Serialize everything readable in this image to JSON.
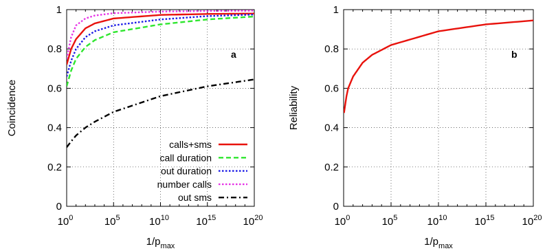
{
  "chart_data": [
    {
      "panel": "a",
      "type": "line",
      "title": "",
      "xlabel": "1/p",
      "xlabel_sub": "max",
      "ylabel": "Coincidence",
      "x_scale": "log",
      "xlim": [
        1,
        1e+20
      ],
      "ylim": [
        0,
        1
      ],
      "grid": true,
      "legend_position": "bottom-right",
      "x_ticks": [
        {
          "base": "10",
          "exp": "0"
        },
        {
          "base": "10",
          "exp": "5"
        },
        {
          "base": "10",
          "exp": "10"
        },
        {
          "base": "10",
          "exp": "15"
        },
        {
          "base": "10",
          "exp": "20"
        }
      ],
      "y_ticks": [
        "0",
        "0.2",
        "0.4",
        "0.6",
        "0.8",
        "1"
      ],
      "y_tick_values": [
        0,
        0.2,
        0.4,
        0.6,
        0.8,
        1
      ],
      "series": [
        {
          "name": "calls+sms",
          "color": "#e8120c",
          "dash": "solid",
          "x": [
            1,
            3,
            10,
            100,
            1000.0,
            100000.0,
            10000000000.0,
            1000000000000000.0,
            1e+20
          ],
          "y": [
            0.72,
            0.8,
            0.85,
            0.905,
            0.93,
            0.955,
            0.973,
            0.978,
            0.98
          ]
        },
        {
          "name": "call duration",
          "color": "#2ee62e",
          "dash": "dashed",
          "x": [
            1,
            3,
            10,
            100,
            1000.0,
            100000.0,
            10000000000.0,
            1000000000000000.0,
            1e+20
          ],
          "y": [
            0.61,
            0.69,
            0.75,
            0.81,
            0.845,
            0.885,
            0.925,
            0.95,
            0.965
          ]
        },
        {
          "name": "out duration",
          "color": "#1a1ae6",
          "dash": "dotted",
          "x": [
            1,
            3,
            10,
            100,
            1000.0,
            100000.0,
            10000000000.0,
            1000000000000000.0,
            1e+20
          ],
          "y": [
            0.66,
            0.74,
            0.8,
            0.86,
            0.89,
            0.92,
            0.95,
            0.967,
            0.975
          ]
        },
        {
          "name": "number calls",
          "color": "#e633e6",
          "dash": "dotted",
          "x": [
            1,
            3,
            10,
            100,
            1000.0,
            100000.0,
            10000000000.0,
            1000000000000000.0,
            1e+20
          ],
          "y": [
            0.75,
            0.86,
            0.92,
            0.955,
            0.97,
            0.982,
            0.99,
            0.993,
            0.995
          ]
        },
        {
          "name": "out sms",
          "color": "#000000",
          "dash": "dashdot",
          "x": [
            1,
            3,
            10,
            100,
            1000.0,
            100000.0,
            10000000000.0,
            1000000000000000.0,
            1e+20
          ],
          "y": [
            0.3,
            0.33,
            0.36,
            0.4,
            0.43,
            0.48,
            0.56,
            0.61,
            0.645
          ]
        }
      ]
    },
    {
      "panel": "b",
      "type": "line",
      "title": "",
      "xlabel": "1/p",
      "xlabel_sub": "max",
      "ylabel": "Reliability",
      "x_scale": "log",
      "xlim": [
        1,
        1e+20
      ],
      "ylim": [
        0,
        1
      ],
      "grid": true,
      "x_ticks": [
        {
          "base": "10",
          "exp": "0"
        },
        {
          "base": "10",
          "exp": "5"
        },
        {
          "base": "10",
          "exp": "10"
        },
        {
          "base": "10",
          "exp": "15"
        },
        {
          "base": "10",
          "exp": "20"
        }
      ],
      "y_ticks": [
        "0",
        "0.2",
        "0.4",
        "0.6",
        "0.8",
        "1"
      ],
      "y_tick_values": [
        0,
        0.2,
        0.4,
        0.6,
        0.8,
        1
      ],
      "series": [
        {
          "color": "#e8120c",
          "dash": "solid",
          "x": [
            1.1,
            1.5,
            2,
            3,
            10,
            100,
            1000.0,
            100000.0,
            10000000000.0,
            1000000000000000.0,
            1e+20
          ],
          "y": [
            0.475,
            0.52,
            0.56,
            0.6,
            0.66,
            0.73,
            0.77,
            0.82,
            0.89,
            0.925,
            0.945
          ]
        }
      ]
    }
  ]
}
